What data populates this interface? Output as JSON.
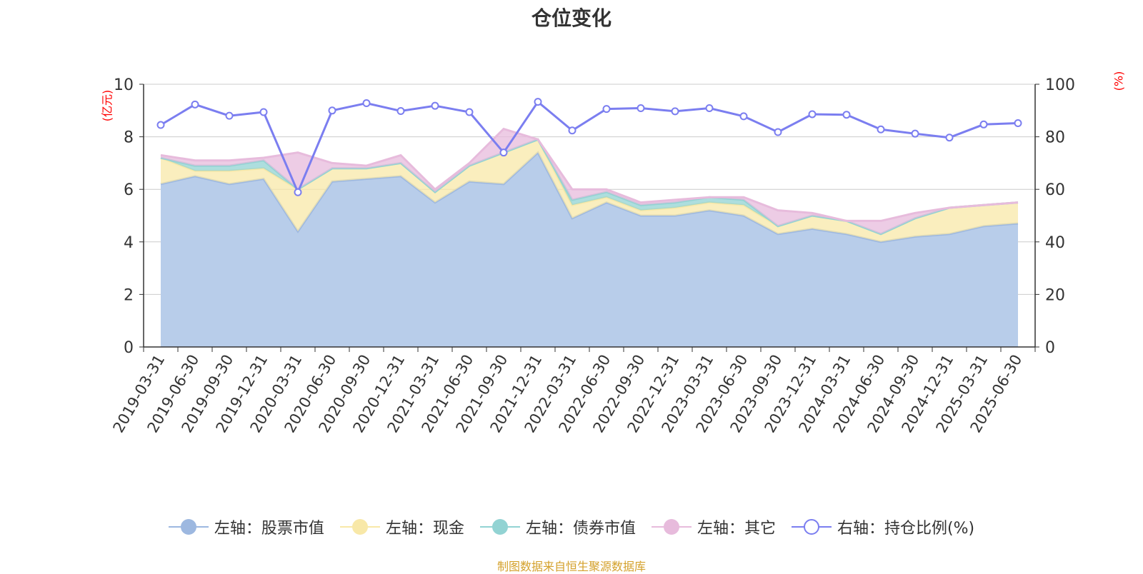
{
  "title": "仓位变化",
  "source_note": "制图数据来自恒生聚源数据库",
  "axis_units": {
    "left": "(亿元)",
    "right": "(%)"
  },
  "colors": {
    "stock": "#9db8e0",
    "stock_fill": "#b8cdea",
    "cash": "#f8e8a8",
    "bond": "#92d3d3",
    "other": "#e7bbdc",
    "ratio": "#7b7ef0",
    "source": "#d4a12b",
    "unit": "#ff0000"
  },
  "legend": [
    {
      "label": "左轴：股票市值",
      "color": "#9db8e0",
      "icon": "filled-circle"
    },
    {
      "label": "左轴：现金",
      "color": "#f8e8a8",
      "icon": "filled-circle"
    },
    {
      "label": "左轴：债券市值",
      "color": "#92d3d3",
      "icon": "filled-circle"
    },
    {
      "label": "左轴：其它",
      "color": "#e7bbdc",
      "icon": "filled-circle"
    },
    {
      "label": "右轴：持仓比例(%)",
      "color": "#7b7ef0",
      "icon": "hollow-circle"
    }
  ],
  "chart_data": {
    "type": "area",
    "stacked": true,
    "title": "仓位变化",
    "x_label_rotation": "-60deg",
    "categories": [
      "2019-03-31",
      "2019-06-30",
      "2019-09-30",
      "2019-12-31",
      "2020-03-31",
      "2020-06-30",
      "2020-09-30",
      "2020-12-31",
      "2021-03-31",
      "2021-06-30",
      "2021-09-30",
      "2021-12-31",
      "2022-03-31",
      "2022-06-30",
      "2022-09-30",
      "2022-12-31",
      "2023-03-31",
      "2023-06-30",
      "2023-09-30",
      "2023-12-31",
      "2024-03-31",
      "2024-06-30",
      "2024-09-30",
      "2024-12-31",
      "2025-03-31",
      "2025-06-30"
    ],
    "left_axis": {
      "unit": "(亿元)",
      "ylim": [
        0,
        10
      ],
      "ticks": [
        0,
        2,
        4,
        6,
        8,
        10
      ]
    },
    "right_axis": {
      "unit": "(%)",
      "ylim": [
        0,
        100
      ],
      "ticks": [
        0,
        20,
        40,
        60,
        80,
        100
      ]
    },
    "grid": true,
    "legend_position": "bottom",
    "series": [
      {
        "name": "左轴：股票市值",
        "axis": "left",
        "kind": "stacked-area",
        "values": [
          6.2,
          6.5,
          6.2,
          6.4,
          4.4,
          6.3,
          6.4,
          6.5,
          5.5,
          6.3,
          6.2,
          7.4,
          4.9,
          5.5,
          5.0,
          5.0,
          5.2,
          5.0,
          4.3,
          4.5,
          4.3,
          4.0,
          4.2,
          4.3,
          4.6,
          4.7
        ]
      },
      {
        "name": "左轴：现金",
        "axis": "left",
        "kind": "stacked-area",
        "values": [
          1.0,
          0.2,
          0.5,
          0.4,
          1.6,
          0.5,
          0.4,
          0.5,
          0.4,
          0.6,
          1.2,
          0.5,
          0.5,
          0.2,
          0.2,
          0.3,
          0.3,
          0.4,
          0.3,
          0.5,
          0.5,
          0.3,
          0.7,
          1.0,
          0.8,
          0.8
        ]
      },
      {
        "name": "左轴：债券市值",
        "axis": "left",
        "kind": "stacked-area",
        "values": [
          0.0,
          0.2,
          0.2,
          0.3,
          0.0,
          0.0,
          0.0,
          0.0,
          0.0,
          0.0,
          0.0,
          0.0,
          0.2,
          0.2,
          0.2,
          0.2,
          0.2,
          0.2,
          0.0,
          0.0,
          0.0,
          0.0,
          0.0,
          0.0,
          0.0,
          0.0
        ]
      },
      {
        "name": "左轴：其它",
        "axis": "left",
        "kind": "stacked-area",
        "values": [
          0.1,
          0.2,
          0.2,
          0.1,
          1.4,
          0.2,
          0.1,
          0.3,
          0.1,
          0.1,
          0.9,
          0.0,
          0.4,
          0.1,
          0.1,
          0.1,
          0.0,
          0.1,
          0.6,
          0.1,
          0.0,
          0.5,
          0.2,
          0.0,
          0.0,
          0.0
        ]
      },
      {
        "name": "右轴：持仓比例(%)",
        "axis": "right",
        "kind": "line",
        "values": [
          84.5,
          92.3,
          88.0,
          89.4,
          58.9,
          90.0,
          92.8,
          89.8,
          91.8,
          89.4,
          74.0,
          93.3,
          82.4,
          90.6,
          90.9,
          89.7,
          90.9,
          87.8,
          81.8,
          88.6,
          88.4,
          82.8,
          81.2,
          79.7,
          84.7,
          85.2
        ]
      }
    ]
  }
}
